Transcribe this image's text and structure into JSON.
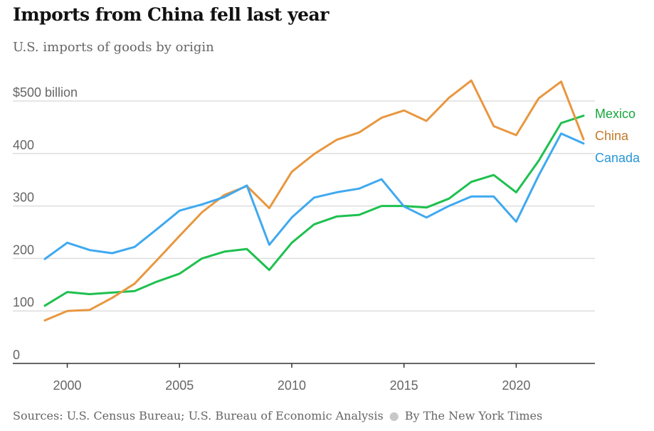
{
  "header": {
    "title": "Imports from China fell last year",
    "subtitle": "U.S. imports of goods by origin"
  },
  "footer": {
    "sources": "Sources: U.S. Census Bureau; U.S. Bureau of Economic Analysis",
    "separator": "●",
    "credit": "By The New York Times"
  },
  "chart_data": {
    "type": "line",
    "title": "Imports from China fell last year",
    "subtitle": "U.S. imports of goods by origin",
    "xlabel": "",
    "ylabel": "",
    "x": [
      1999,
      2000,
      2001,
      2002,
      2003,
      2004,
      2005,
      2006,
      2007,
      2008,
      2009,
      2010,
      2011,
      2012,
      2013,
      2014,
      2015,
      2016,
      2017,
      2018,
      2019,
      2020,
      2021,
      2022,
      2023
    ],
    "xlim": [
      1999,
      2023
    ],
    "ylim": [
      0,
      500
    ],
    "x_ticks": [
      2000,
      2005,
      2010,
      2015,
      2020
    ],
    "y_ticks": [
      {
        "value": 0,
        "label": "0"
      },
      {
        "value": 100,
        "label": "100"
      },
      {
        "value": 200,
        "label": "200"
      },
      {
        "value": 300,
        "label": "300"
      },
      {
        "value": 400,
        "label": "400"
      },
      {
        "value": 500,
        "label": "$500 billion"
      }
    ],
    "grid": "horizontal",
    "legend": "direct labels at right end of lines",
    "series": [
      {
        "name": "Mexico",
        "color": "#1ec04f",
        "label_color": "#17a63d",
        "values": [
          110,
          136,
          132,
          135,
          138,
          156,
          171,
          200,
          213,
          218,
          178,
          230,
          265,
          280,
          283,
          300,
          300,
          297,
          314,
          346,
          359,
          326,
          386,
          458,
          472
        ]
      },
      {
        "name": "China",
        "color": "#e8973f",
        "label_color": "#c27a2c",
        "values": [
          82,
          100,
          102,
          125,
          152,
          197,
          243,
          288,
          321,
          338,
          296,
          365,
          399,
          426,
          440,
          468,
          482,
          462,
          506,
          539,
          452,
          435,
          505,
          537,
          427
        ]
      },
      {
        "name": "Canada",
        "color": "#3fa9f0",
        "label_color": "#2a96d8",
        "values": [
          199,
          230,
          216,
          210,
          222,
          256,
          291,
          303,
          317,
          339,
          226,
          278,
          316,
          326,
          333,
          351,
          299,
          278,
          300,
          318,
          318,
          270,
          358,
          438,
          419
        ]
      }
    ]
  }
}
